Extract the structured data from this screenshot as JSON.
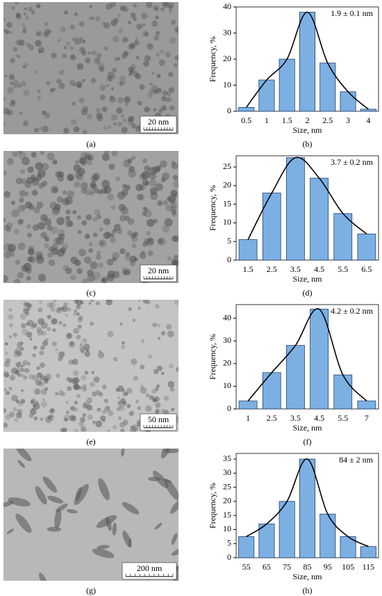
{
  "chart_data": [
    {
      "type": "bar",
      "categories": [
        "0.5",
        "1",
        "1.5",
        "2",
        "2.5",
        "3",
        "4"
      ],
      "values": [
        1.5,
        12,
        20,
        38,
        18.5,
        7.5,
        0.8
      ],
      "ylim": [
        0,
        40
      ],
      "yticks": [
        0,
        10,
        20,
        30,
        40
      ],
      "color": "#7cb0e3",
      "annotation": "1.9 ± 0.1 nm",
      "xlabel": "Size, nm",
      "ylabel": "Frequency, %",
      "panel_label": "(b)"
    },
    {
      "type": "bar",
      "categories": [
        "1.5",
        "2.5",
        "3.5",
        "4.5",
        "5.5",
        "6.5"
      ],
      "values": [
        5.5,
        18,
        27.5,
        22,
        12.5,
        7
      ],
      "ylim": [
        0,
        28
      ],
      "yticks": [
        0,
        5,
        10,
        15,
        20,
        25
      ],
      "color": "#7cb0e3",
      "annotation": "3.7 ± 0.2 nm",
      "xlabel": "Size, nm",
      "ylabel": "Frequency, %",
      "panel_label": "(d)"
    },
    {
      "type": "bar",
      "categories": [
        "1",
        "2.5",
        "3.5",
        "4.5",
        "5.5",
        "7"
      ],
      "values": [
        3.5,
        16,
        28,
        44,
        15,
        3.5
      ],
      "ylim": [
        0,
        46
      ],
      "yticks": [
        0,
        10,
        20,
        30,
        40
      ],
      "color": "#7cb0e3",
      "annotation": "4.2 ± 0.2 nm",
      "xlabel": "Size, nm",
      "ylabel": "Frequency, %",
      "panel_label": "(f)"
    },
    {
      "type": "bar",
      "categories": [
        "55",
        "65",
        "75",
        "85",
        "95",
        "105",
        "115"
      ],
      "values": [
        7.5,
        12,
        20,
        35,
        15.5,
        7.5,
        4
      ],
      "ylim": [
        0,
        37
      ],
      "yticks": [
        0,
        5,
        10,
        15,
        20,
        25,
        30,
        35
      ],
      "color": "#7cb0e3",
      "annotation": "84 ± 2 nm",
      "xlabel": "Size, nm",
      "ylabel": "Frequency, %",
      "panel_label": "(h)"
    }
  ],
  "images": [
    {
      "scale_bar": "20 nm",
      "panel_label": "(a)"
    },
    {
      "scale_bar": "20 nm",
      "panel_label": "(c)"
    },
    {
      "scale_bar": "50 nm",
      "panel_label": "(e)"
    },
    {
      "scale_bar": "200 nm",
      "panel_label": "(g)"
    }
  ]
}
